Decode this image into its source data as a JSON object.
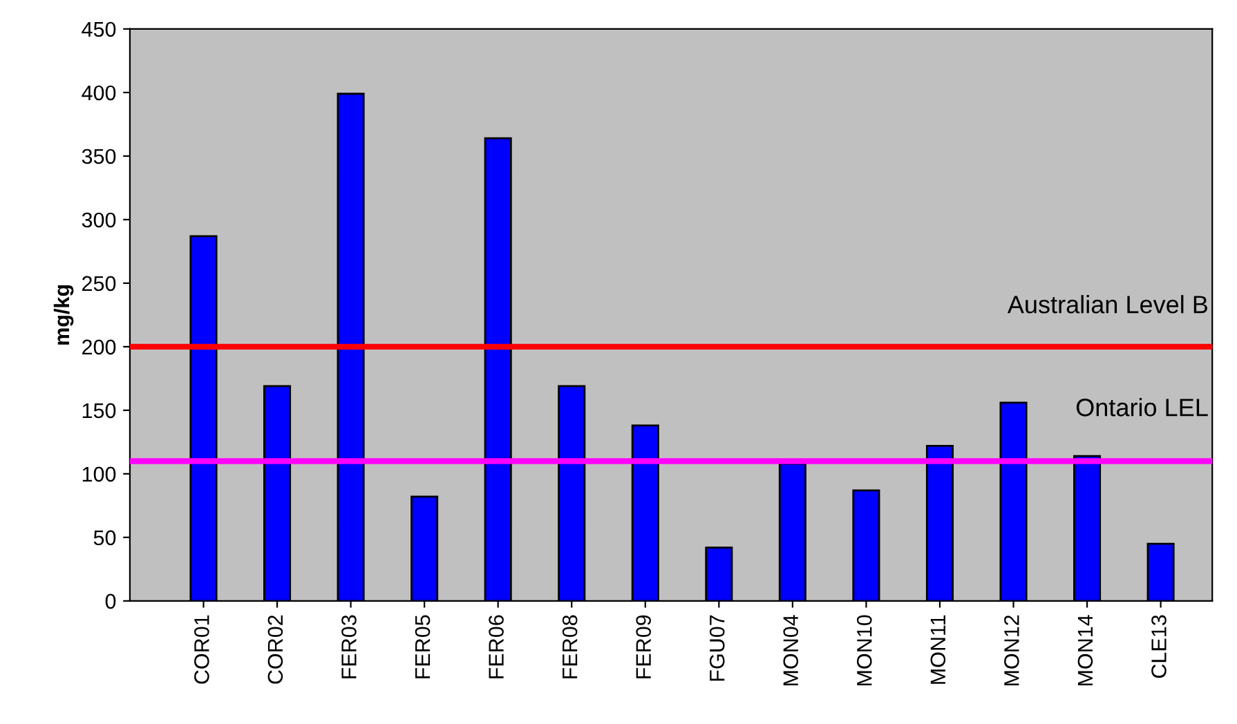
{
  "chart_data": {
    "type": "bar",
    "ylabel": "mg/kg",
    "categories": [
      "COR01",
      "COR02",
      "FER03",
      "FER05",
      "FER06",
      "FER08",
      "FER09",
      "FGU07",
      "MON04",
      "MON10",
      "MON11",
      "MON12",
      "MON14",
      "CLE13"
    ],
    "values": [
      287,
      169,
      399,
      82,
      364,
      169,
      138,
      42,
      108,
      87,
      122,
      156,
      114,
      45
    ],
    "color": "#0000ff",
    "ylim": [
      0,
      450
    ],
    "yticks": [
      0,
      50,
      100,
      150,
      200,
      250,
      300,
      350,
      400,
      450
    ],
    "ref_lines": [
      {
        "axis": "y",
        "value": 200,
        "label": "Australian Level B",
        "color": "#ff0000"
      },
      {
        "axis": "y",
        "value": 110,
        "label": "Ontario LEL",
        "color": "#ff00ff"
      }
    ],
    "grid": false,
    "legend": false
  }
}
